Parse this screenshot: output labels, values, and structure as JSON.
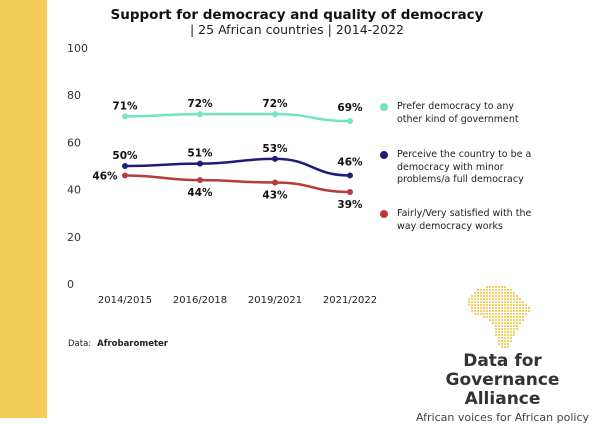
{
  "chart_data": {
    "type": "line",
    "title": "Support for democracy and quality of democracy",
    "subtitle": "| 25 African countries | 2014-2022",
    "categories": [
      "2014/2015",
      "2016/2018",
      "2019/2021",
      "2021/2022"
    ],
    "yticks": [
      "0",
      "20",
      "40",
      "60",
      "80",
      "100"
    ],
    "ylim": [
      0,
      100
    ],
    "series": [
      {
        "name": "Prefer democracy to any other kind of government",
        "color": "#74e6bd",
        "values": [
          71,
          72,
          72,
          69
        ],
        "labels": [
          "71%",
          "72%",
          "72%",
          "69%"
        ]
      },
      {
        "name": "Perceive the country to be a democracy with minor problems/a full democracy",
        "color": "#1f1d78",
        "values": [
          50,
          51,
          53,
          46
        ],
        "labels": [
          "50%",
          "51%",
          "53%",
          "46%"
        ]
      },
      {
        "name": "Fairly/Very satisfied with the way democracy works",
        "color": "#b93a3c",
        "values": [
          46,
          44,
          43,
          39
        ],
        "labels": [
          "46%",
          "44%",
          "43%",
          "39%"
        ]
      }
    ],
    "legend": "right"
  },
  "source": {
    "label": "Data:",
    "value": "Afrobarometer"
  },
  "logo": {
    "line1": "Data for",
    "line2": "Governance Alliance",
    "tagline": "African voices for African policy"
  }
}
